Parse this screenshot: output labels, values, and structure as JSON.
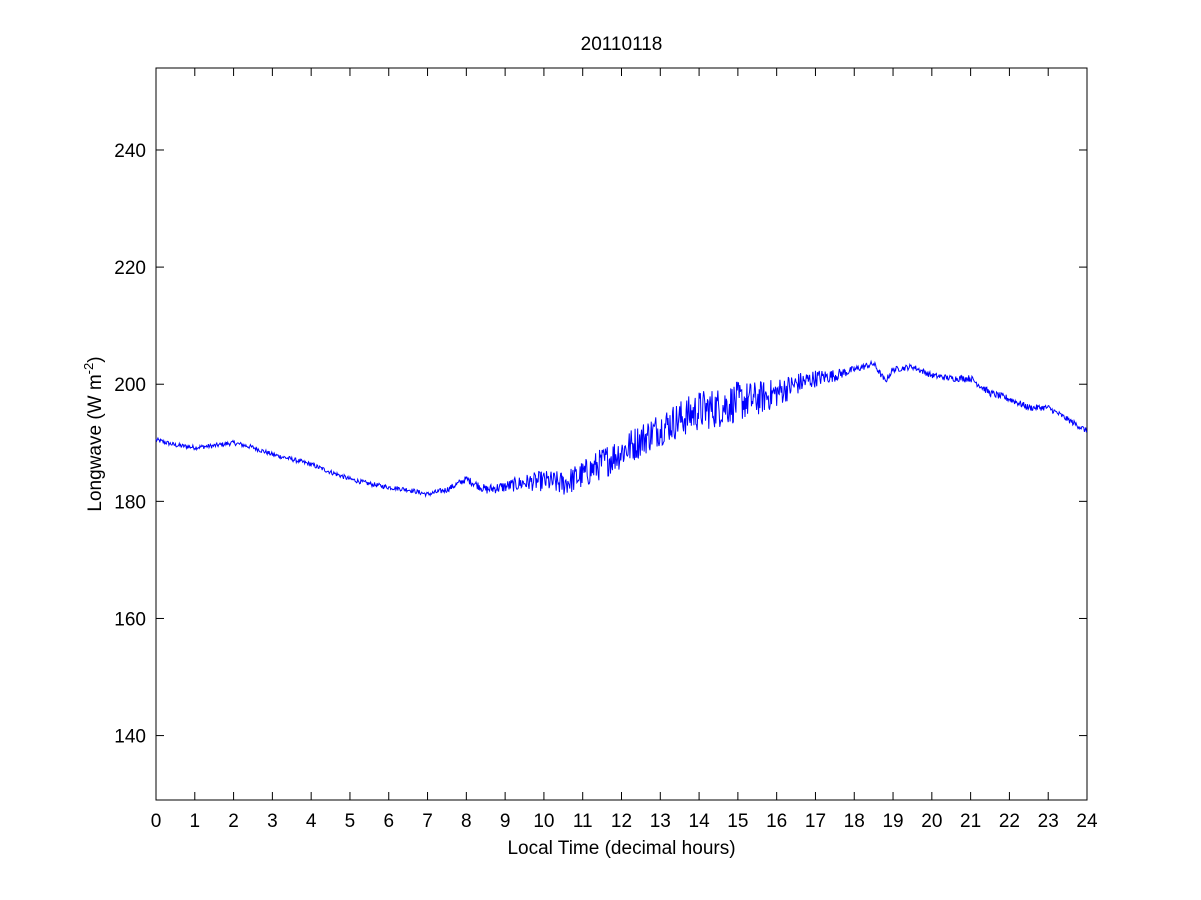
{
  "chart_data": {
    "type": "line",
    "title": "20110118",
    "xlabel": "Local Time (decimal hours)",
    "ylabel": {
      "text": "Longwave (W m",
      "superscript": "-2",
      "close": ")"
    },
    "xlim": [
      0,
      24
    ],
    "ylim": [
      129,
      254
    ],
    "x_ticks": [
      0,
      1,
      2,
      3,
      4,
      5,
      6,
      7,
      8,
      9,
      10,
      11,
      12,
      13,
      14,
      15,
      16,
      17,
      18,
      19,
      20,
      21,
      22,
      23,
      24
    ],
    "y_ticks": [
      140,
      160,
      180,
      200,
      220,
      240
    ],
    "grid": false,
    "series": [
      {
        "color": "#0000ff",
        "noise_amplitude": [
          0.4,
          0.4,
          0.4,
          0.4,
          0.4,
          0.4,
          0.4,
          0.4,
          0.6,
          1.0,
          1.8,
          2.5,
          3.0,
          3.0,
          3.5,
          3.5,
          2.5,
          1.5,
          0.6,
          0.5,
          0.5,
          0.6,
          0.6,
          0.5,
          0.5
        ],
        "x": [
          0,
          0.5,
          1,
          1.5,
          2,
          2.5,
          3,
          3.5,
          4,
          4.5,
          5,
          5.5,
          6,
          6.5,
          7,
          7.5,
          8,
          8.5,
          9,
          9.5,
          10,
          10.5,
          11,
          11.5,
          12,
          12.5,
          13,
          13.5,
          14,
          14.5,
          15,
          15.5,
          16,
          16.5,
          17,
          17.5,
          18,
          18.5,
          18.8,
          19,
          19.5,
          20,
          20.5,
          21,
          21.5,
          22,
          22.5,
          23,
          23.5,
          24
        ],
        "values": [
          190.5,
          189.6,
          189.2,
          189.5,
          190.0,
          189.2,
          188.0,
          187.2,
          186.3,
          185.0,
          183.8,
          183.0,
          182.4,
          182.0,
          181.2,
          182.0,
          183.8,
          182.0,
          182.5,
          183.2,
          183.5,
          183.0,
          184.5,
          186.5,
          188.5,
          190.5,
          192.5,
          194.0,
          195.5,
          196.0,
          197.0,
          197.5,
          198.5,
          200.0,
          201.0,
          201.5,
          202.5,
          203.5,
          200.5,
          202.5,
          203.0,
          201.5,
          201.0,
          201.0,
          198.5,
          197.5,
          196.0,
          196.0,
          194.0,
          192.0
        ]
      }
    ]
  }
}
